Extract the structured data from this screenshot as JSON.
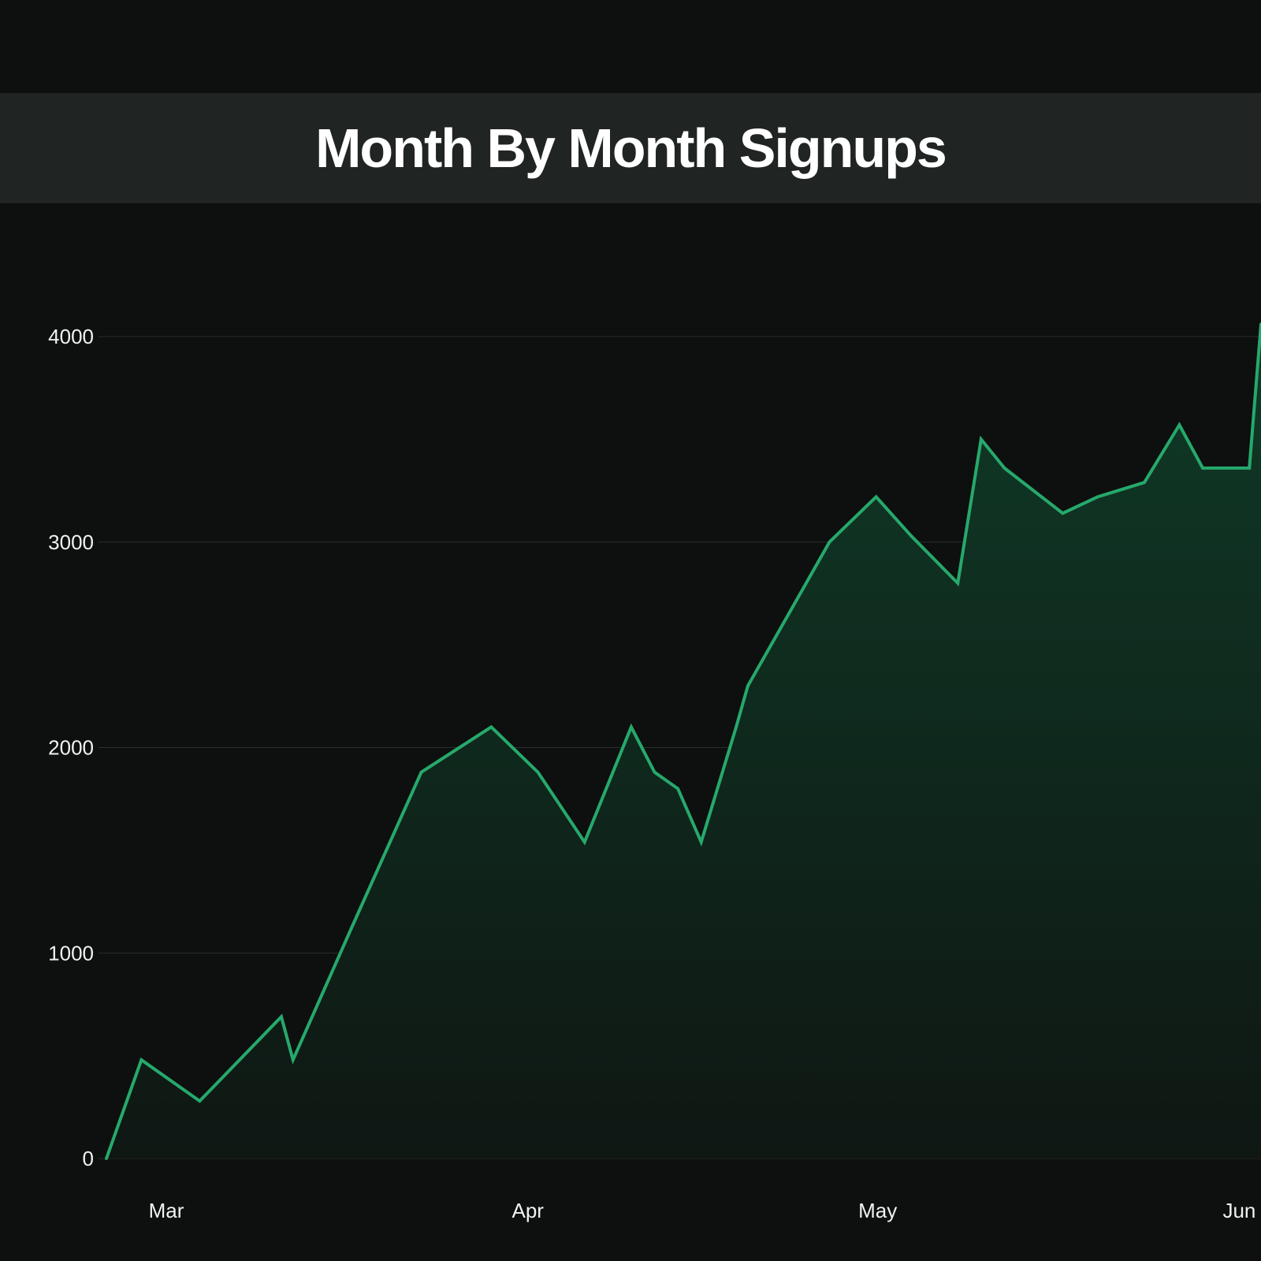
{
  "chart_data": {
    "type": "area",
    "title": "Month By Month Signups",
    "xlabel": "",
    "ylabel": "",
    "ylim": [
      0,
      4000
    ],
    "y_ticks": [
      0,
      1000,
      2000,
      3000,
      4000
    ],
    "y_tick_labels": [
      "0",
      "1000",
      "2000",
      "3000",
      "4000"
    ],
    "x_ticks": [
      {
        "label": "Mar",
        "x": "2024-03-01"
      },
      {
        "label": "Apr",
        "x": "2024-04-01"
      },
      {
        "label": "May",
        "x": "2024-05-01"
      },
      {
        "label": "Jun",
        "x": "2024-06-01"
      }
    ],
    "xlim": [
      "2024-02-25",
      "2024-06-03"
    ],
    "grid": true,
    "legend": "none",
    "colors": {
      "line": "#26a96c",
      "fill_top": "#0f3a27",
      "fill_bottom": "#0f1713",
      "background": "#0e0f0f",
      "title_band": "#202423",
      "grid": "#2a2d2c",
      "text": "#ffffff"
    },
    "series": [
      {
        "x": [
          "2024-02-25",
          "2024-02-28",
          "2024-03-04",
          "2024-03-11",
          "2024-03-12",
          "2024-03-17",
          "2024-03-23",
          "2024-03-29",
          "2024-04-02",
          "2024-04-06",
          "2024-04-10",
          "2024-04-12",
          "2024-04-14",
          "2024-04-16",
          "2024-04-19",
          "2024-04-20",
          "2024-04-25",
          "2024-04-27",
          "2024-05-01",
          "2024-05-04",
          "2024-05-08",
          "2024-05-10",
          "2024-05-12",
          "2024-05-17",
          "2024-05-20",
          "2024-05-24",
          "2024-05-27",
          "2024-05-29",
          "2024-06-01",
          "2024-06-02",
          "2024-06-03"
        ],
        "values": [
          0,
          480,
          280,
          690,
          480,
          1120,
          1880,
          2100,
          1880,
          1540,
          2100,
          1880,
          1800,
          1540,
          2100,
          2300,
          2800,
          3000,
          3220,
          3030,
          2800,
          3500,
          3360,
          3140,
          3220,
          3290,
          3570,
          3360,
          3360,
          3360,
          4060
        ]
      }
    ]
  }
}
